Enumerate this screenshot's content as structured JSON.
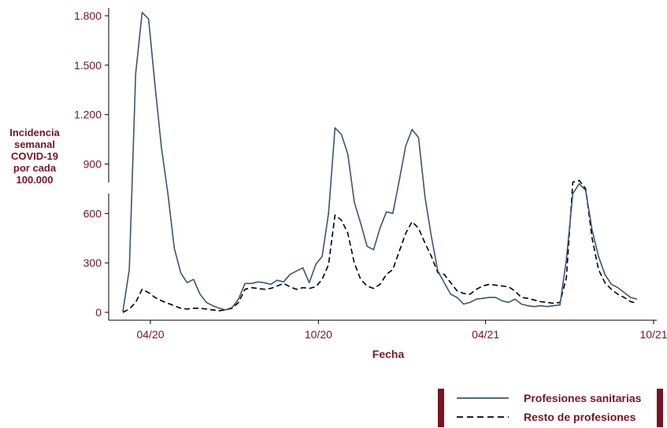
{
  "chart_data": {
    "type": "line",
    "xlabel": "Fecha",
    "ylabel_lines": [
      "Incidencia",
      "semanal",
      "COVID-19",
      "por cada",
      "100.000"
    ],
    "ylim": [
      0,
      1800
    ],
    "yticks": [
      0,
      300,
      600,
      900,
      1200,
      1500,
      1800
    ],
    "ytick_labels": [
      "0",
      "300",
      "600",
      "900",
      "1.200",
      "1.500",
      "1.800"
    ],
    "xticks": [
      "2020-04-01",
      "2020-10-01",
      "2021-04-01",
      "2021-10-01"
    ],
    "xtick_labels": [
      "04/20",
      "10/20",
      "04/21",
      "10/21"
    ],
    "grid": false,
    "legend_position": "bottom-right",
    "colors": {
      "axis_text": "#7a1324",
      "series_1": "#3a5577",
      "series_2": "#000000"
    },
    "x": [
      "2020-03-02",
      "2020-03-09",
      "2020-03-16",
      "2020-03-23",
      "2020-03-30",
      "2020-04-06",
      "2020-04-13",
      "2020-04-20",
      "2020-04-27",
      "2020-05-04",
      "2020-05-11",
      "2020-05-18",
      "2020-05-25",
      "2020-06-01",
      "2020-06-08",
      "2020-06-15",
      "2020-06-22",
      "2020-06-29",
      "2020-07-06",
      "2020-07-13",
      "2020-07-20",
      "2020-07-27",
      "2020-08-03",
      "2020-08-10",
      "2020-08-17",
      "2020-08-24",
      "2020-08-31",
      "2020-09-07",
      "2020-09-14",
      "2020-09-21",
      "2020-09-28",
      "2020-10-05",
      "2020-10-12",
      "2020-10-19",
      "2020-10-26",
      "2020-11-02",
      "2020-11-09",
      "2020-11-16",
      "2020-11-23",
      "2020-11-30",
      "2020-12-07",
      "2020-12-14",
      "2020-12-21",
      "2020-12-28",
      "2021-01-04",
      "2021-01-11",
      "2021-01-18",
      "2021-01-25",
      "2021-02-01",
      "2021-02-08",
      "2021-02-15",
      "2021-02-22",
      "2021-03-01",
      "2021-03-08",
      "2021-03-15",
      "2021-03-22",
      "2021-03-29",
      "2021-04-05",
      "2021-04-12",
      "2021-04-19",
      "2021-04-26",
      "2021-05-03",
      "2021-05-10",
      "2021-05-17",
      "2021-05-24",
      "2021-05-31",
      "2021-06-07",
      "2021-06-14",
      "2021-06-21",
      "2021-06-28",
      "2021-07-05",
      "2021-07-12",
      "2021-07-19",
      "2021-07-26",
      "2021-08-02",
      "2021-08-09",
      "2021-08-16",
      "2021-08-23",
      "2021-08-30",
      "2021-09-06",
      "2021-09-13"
    ],
    "series": [
      {
        "name": "Profesiones sanitarias",
        "style": "solid",
        "values": [
          5,
          260,
          1450,
          1820,
          1780,
          1380,
          1000,
          720,
          390,
          240,
          180,
          200,
          110,
          60,
          40,
          25,
          15,
          30,
          80,
          175,
          175,
          185,
          180,
          170,
          195,
          185,
          230,
          250,
          270,
          180,
          290,
          340,
          600,
          1120,
          1080,
          960,
          670,
          540,
          400,
          380,
          510,
          610,
          600,
          800,
          1010,
          1110,
          1060,
          700,
          460,
          250,
          180,
          110,
          90,
          50,
          60,
          80,
          85,
          90,
          90,
          70,
          60,
          80,
          50,
          40,
          35,
          40,
          35,
          40,
          45,
          320,
          720,
          780,
          740,
          500,
          340,
          230,
          170,
          150,
          120,
          90,
          80
        ],
        "drawn_in_plot": true
      },
      {
        "name": "Resto de profesiones",
        "style": "dashed",
        "values": [
          0,
          20,
          60,
          140,
          120,
          90,
          70,
          55,
          40,
          25,
          20,
          25,
          25,
          20,
          15,
          10,
          15,
          25,
          60,
          140,
          150,
          145,
          140,
          145,
          160,
          175,
          155,
          140,
          150,
          145,
          155,
          200,
          290,
          590,
          560,
          480,
          300,
          200,
          160,
          145,
          170,
          230,
          260,
          370,
          480,
          550,
          510,
          420,
          340,
          240,
          230,
          180,
          130,
          115,
          110,
          140,
          160,
          170,
          165,
          160,
          155,
          130,
          90,
          85,
          75,
          65,
          60,
          55,
          60,
          210,
          790,
          800,
          750,
          450,
          260,
          180,
          140,
          110,
          90,
          65,
          55
        ]
      }
    ]
  }
}
